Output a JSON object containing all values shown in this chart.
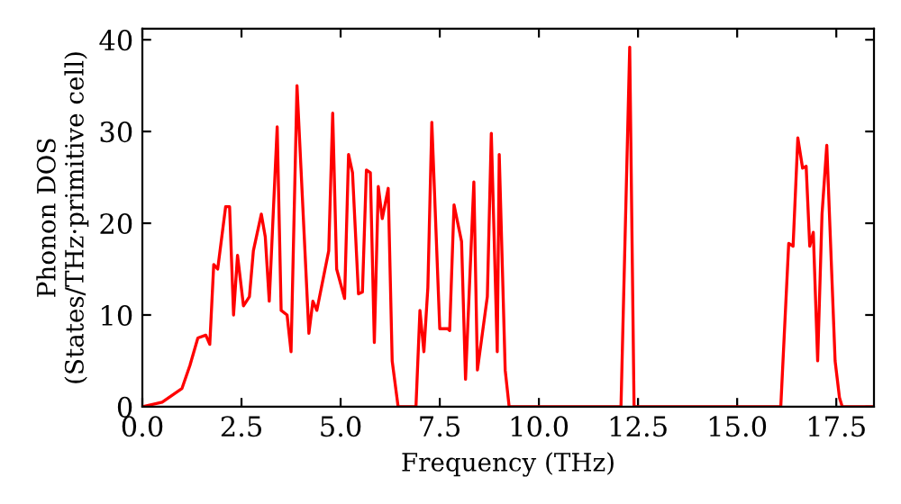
{
  "chart_data": {
    "type": "line",
    "xlabel": "Frequency (THz)",
    "ylabel": "Phonon DOS\n(States/THz·primitive cell)",
    "xlim": [
      0,
      18.45
    ],
    "ylim": [
      0,
      41.2
    ],
    "xticks": [
      {
        "value": 0,
        "label": "0.0"
      },
      {
        "value": 2.5,
        "label": "2.5"
      },
      {
        "value": 5,
        "label": "5.0"
      },
      {
        "value": 7.5,
        "label": "7.5"
      },
      {
        "value": 10,
        "label": "10.0"
      },
      {
        "value": 12.5,
        "label": "12.5"
      },
      {
        "value": 15,
        "label": "15.0"
      },
      {
        "value": 17.5,
        "label": "17.5"
      }
    ],
    "yticks": [
      0,
      10,
      20,
      30,
      40
    ],
    "grid": false,
    "legend": false,
    "marker": "none",
    "line_style": "solid",
    "series": [
      {
        "color": "#ff0000",
        "x": [
          0,
          0.5,
          1.0,
          1.2,
          1.4,
          1.6,
          1.7,
          1.8,
          1.9,
          2.1,
          2.2,
          2.3,
          2.4,
          2.55,
          2.7,
          2.8,
          3.0,
          3.1,
          3.2,
          3.4,
          3.5,
          3.65,
          3.75,
          3.9,
          4.0,
          4.2,
          4.3,
          4.4,
          4.7,
          4.8,
          4.9,
          5.1,
          5.2,
          5.3,
          5.45,
          5.55,
          5.65,
          5.75,
          5.85,
          5.95,
          6.05,
          6.2,
          6.3,
          6.45,
          6.9,
          7.0,
          7.1,
          7.2,
          7.3,
          7.5,
          7.7,
          7.75,
          7.86,
          8.05,
          8.15,
          8.36,
          8.45,
          8.7,
          8.8,
          8.95,
          9.0,
          9.15,
          9.25,
          12.07,
          12.29,
          12.4,
          16.1,
          16.3,
          16.41,
          16.53,
          16.65,
          16.74,
          16.83,
          16.92,
          17.03,
          17.14,
          17.26,
          17.47,
          17.58,
          17.65,
          18.45
        ],
        "values": [
          0,
          0.5,
          2,
          4.5,
          7.5,
          7.8,
          6.8,
          15.5,
          15,
          21.8,
          21.8,
          10,
          16.5,
          11,
          12,
          17,
          21,
          18.5,
          11.5,
          30.5,
          10.5,
          10,
          6,
          35,
          26,
          8,
          11.5,
          10.5,
          17,
          32,
          15,
          11.8,
          27.5,
          25.5,
          12.3,
          12.5,
          25.8,
          25.5,
          7,
          24,
          20.5,
          23.8,
          5,
          0,
          0,
          10.5,
          6,
          13,
          31,
          8.5,
          8.5,
          8.3,
          22,
          18,
          3,
          24.5,
          4,
          12,
          29.8,
          6,
          27.5,
          4,
          0,
          0,
          39.2,
          0,
          0,
          17.8,
          17.5,
          29.3,
          26,
          26.2,
          17.5,
          19,
          5,
          21,
          28.5,
          5,
          1,
          0,
          0
        ]
      }
    ]
  }
}
